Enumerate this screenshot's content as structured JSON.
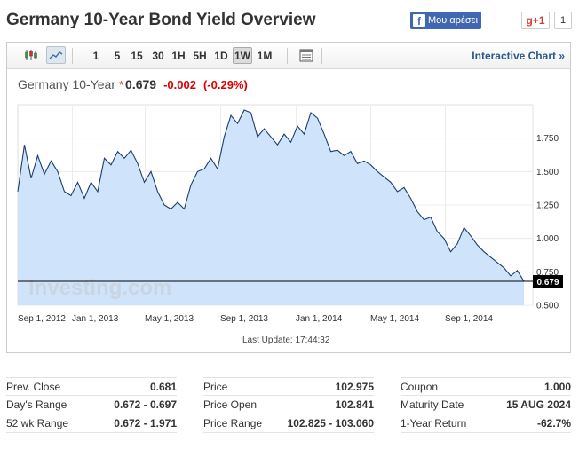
{
  "header": {
    "title": "Germany 10-Year Bond Yield Overview",
    "fb_label": "Μου αρέσει",
    "gplus_label": "g+1",
    "gplus_count": "1"
  },
  "toolbar": {
    "timeframes": [
      "1",
      "5",
      "15",
      "30",
      "1H",
      "5H",
      "1D",
      "1W",
      "1M"
    ],
    "active_timeframe": "1W",
    "interactive_label": "Interactive Chart »"
  },
  "quote": {
    "name": "Germany 10-Year",
    "price": "0.679",
    "change": "-0.002",
    "change_pct": "(-0.29%)"
  },
  "chart_data": {
    "type": "area",
    "x_tick_labels": [
      "Sep 1, 2012",
      "Jan 1, 2013",
      "May 1, 2013",
      "Sep 1, 2013",
      "Jan 1, 2014",
      "May 1, 2014",
      "Sep 1, 2014"
    ],
    "y_tick_labels": [
      "0.500",
      "0.750",
      "1.000",
      "1.250",
      "1.500",
      "1.750"
    ],
    "ylim": [
      0.5,
      2.0
    ],
    "current_value": 0.679,
    "current_label": "0.679",
    "watermark": "Investing.com",
    "values": [
      1.35,
      1.7,
      1.45,
      1.62,
      1.48,
      1.58,
      1.5,
      1.35,
      1.32,
      1.42,
      1.3,
      1.42,
      1.35,
      1.6,
      1.55,
      1.65,
      1.6,
      1.66,
      1.56,
      1.42,
      1.5,
      1.35,
      1.25,
      1.22,
      1.27,
      1.22,
      1.4,
      1.5,
      1.52,
      1.6,
      1.52,
      1.76,
      1.92,
      1.86,
      1.96,
      1.94,
      1.76,
      1.82,
      1.76,
      1.7,
      1.78,
      1.72,
      1.84,
      1.78,
      1.94,
      1.9,
      1.78,
      1.65,
      1.66,
      1.62,
      1.65,
      1.56,
      1.58,
      1.55,
      1.5,
      1.46,
      1.42,
      1.35,
      1.38,
      1.3,
      1.2,
      1.14,
      1.16,
      1.05,
      1.0,
      0.9,
      0.96,
      1.08,
      1.02,
      0.95,
      0.9,
      0.86,
      0.82,
      0.78,
      0.72,
      0.76,
      0.679
    ],
    "last_update": "Last Update: 17:44:32"
  },
  "stats": {
    "col1": [
      {
        "label": "Prev. Close",
        "value": "0.681"
      },
      {
        "label": "Day's Range",
        "value": "0.672 - 0.697"
      },
      {
        "label": "52 wk Range",
        "value": "0.672 - 1.971"
      }
    ],
    "col2": [
      {
        "label": "Price",
        "value": "102.975"
      },
      {
        "label": "Price Open",
        "value": "102.841"
      },
      {
        "label": "Price Range",
        "value": "102.825 - 103.060"
      }
    ],
    "col3": [
      {
        "label": "Coupon",
        "value": "1.000"
      },
      {
        "label": "Maturity Date",
        "value": "15 AUG 2024"
      },
      {
        "label": "1-Year Return",
        "value": "-62.7%"
      }
    ]
  }
}
